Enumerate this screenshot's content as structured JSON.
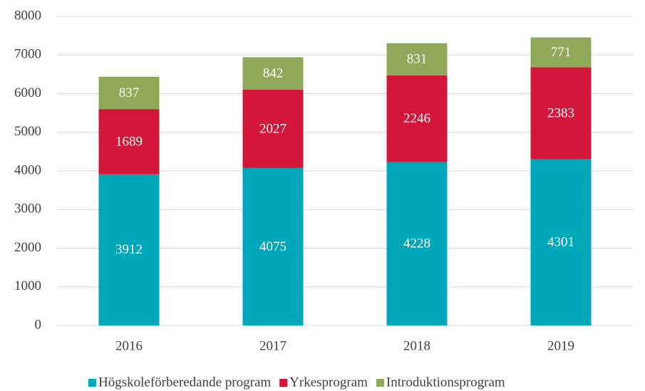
{
  "chart_data": {
    "type": "stacked_bar",
    "categories": [
      "2016",
      "2017",
      "2018",
      "2019"
    ],
    "series": [
      {
        "name": "Högskoleförberedande program",
        "color": "#00a7b9",
        "values": [
          3912,
          4075,
          4228,
          4301
        ]
      },
      {
        "name": "Yrkesprogram",
        "color": "#d3173b",
        "values": [
          1689,
          2027,
          2246,
          2383
        ]
      },
      {
        "name": "Introduktionsprogram",
        "color": "#8fa958",
        "values": [
          837,
          842,
          831,
          771
        ]
      }
    ],
    "ylim": [
      0,
      8000
    ],
    "yticks": [
      0,
      1000,
      2000,
      3000,
      4000,
      5000,
      6000,
      7000,
      8000
    ],
    "grid": true,
    "legend": "bottom"
  }
}
